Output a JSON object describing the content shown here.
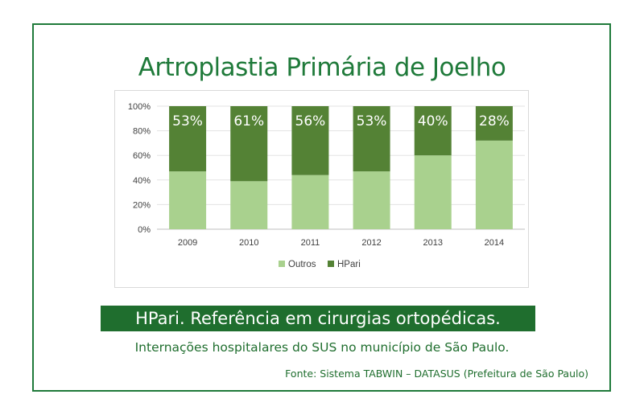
{
  "title": "Artroplastia Primária de Joelho",
  "banner": "HPari. Referência em cirurgias ortopédicas.",
  "subtitle": "Internações hospitalares do SUS no município de São Paulo.",
  "source": "Fonte: Sistema TABWIN – DATASUS (Prefeitura de São Paulo)",
  "colors": {
    "outros": "#a9d18e",
    "hpari": "#548235",
    "accent": "#1f7a3a"
  },
  "chart_data": {
    "type": "bar",
    "stacked": "percent",
    "categories": [
      "2009",
      "2010",
      "2011",
      "2012",
      "2013",
      "2014"
    ],
    "series": [
      {
        "name": "Outros",
        "values": [
          47,
          39,
          44,
          47,
          60,
          72
        ]
      },
      {
        "name": "HPari",
        "values": [
          53,
          61,
          56,
          53,
          40,
          28
        ]
      }
    ],
    "data_labels": [
      "53%",
      "61%",
      "56%",
      "53%",
      "40%",
      "28%"
    ],
    "y_ticks": [
      "0%",
      "20%",
      "40%",
      "60%",
      "80%",
      "100%"
    ],
    "ylim": [
      0,
      100
    ],
    "grid": true,
    "legend_position": "bottom"
  }
}
